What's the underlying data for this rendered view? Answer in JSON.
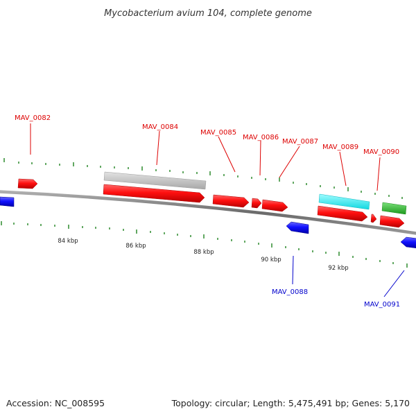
{
  "header": {
    "title": "Mycobacterium avium 104, complete genome"
  },
  "footer": {
    "accession": "Accession: NC_008595",
    "summary": "Topology: circular; Length: 5,475,491 bp; Genes: 5,170"
  },
  "colors": {
    "forward_gene": "#ff0000",
    "reverse_gene": "#0000ff",
    "forward_label": "#dd0000",
    "reverse_label": "#0000cc",
    "tick": "#2e8b2e",
    "grey_feature": "#c8c8c8",
    "cyan_feature": "#22ffff",
    "green_feature": "#33cc33",
    "backbone": "#808080"
  },
  "scale_labels": [
    "84 kbp",
    "86 kbp",
    "88 kbp",
    "90 kbp",
    "92 kbp"
  ],
  "gene_labels": {
    "forward": [
      "MAV_0082",
      "MAV_0084",
      "MAV_0085",
      "MAV_0086",
      "MAV_0087",
      "MAV_0089",
      "MAV_0090"
    ],
    "reverse": [
      "MAV_0088",
      "MAV_0091"
    ]
  }
}
